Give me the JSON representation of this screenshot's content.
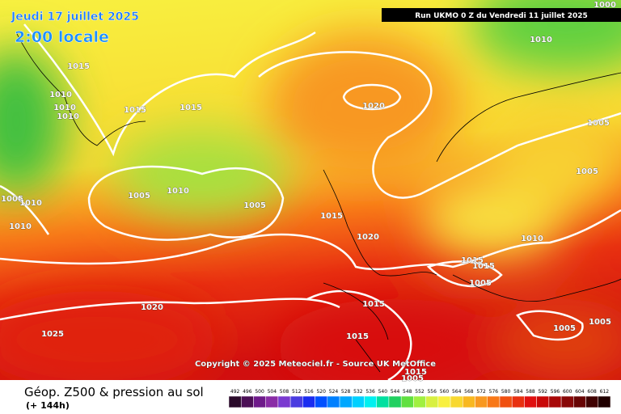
{
  "header": {
    "date": "Jeudi 17 juillet 2025",
    "time": "2:00 locale",
    "run": "Run UKMO 0 Z du Vendredi 11 juillet 2025"
  },
  "isobar_labels": [
    "1015",
    "1010",
    "1010",
    "1010",
    "1015",
    "1015",
    "1020",
    "1010",
    "1005",
    "1005",
    "1005",
    "1010",
    "1005",
    "1005",
    "1010",
    "1010",
    "1015",
    "1020",
    "1010",
    "1015",
    "1015",
    "1005",
    "1020",
    "1025",
    "1015",
    "1015",
    "1005",
    "1005",
    "1000",
    "1005",
    "1015"
  ],
  "footer": {
    "copyright": "Copyright © 2025 Meteociel.fr - Source UK MetOffice",
    "title": "Géop. Z500 & pression au sol",
    "lead": "(+ 144h)"
  },
  "color_scale": {
    "labels": [
      "492",
      "496",
      "500",
      "504",
      "508",
      "512",
      "516",
      "520",
      "524",
      "528",
      "532",
      "536",
      "540",
      "544",
      "548",
      "552",
      "556",
      "560",
      "564",
      "568",
      "572",
      "576",
      "580",
      "584",
      "588",
      "592",
      "596",
      "600",
      "604",
      "608",
      "612"
    ],
    "colors": [
      "#2a0a2a",
      "#4b0f55",
      "#6e1a8a",
      "#8a2ca6",
      "#7a3ad0",
      "#4a3ce0",
      "#1a2cf0",
      "#0050ff",
      "#0080ff",
      "#00a8ff",
      "#00d0ff",
      "#00f0f0",
      "#00e0a0",
      "#20d060",
      "#60e040",
      "#a0f040",
      "#d8f040",
      "#f8f040",
      "#f8d830",
      "#f8b820",
      "#f89820",
      "#f87818",
      "#f05010",
      "#e83010",
      "#e01010",
      "#c80808",
      "#a80808",
      "#880808",
      "#680404",
      "#400202",
      "#200000"
    ]
  }
}
